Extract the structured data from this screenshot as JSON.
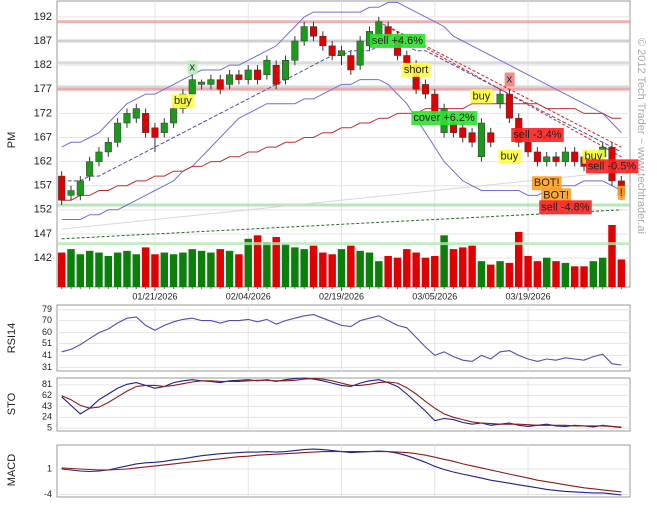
{
  "chart_data": [
    {
      "type": "candlestick",
      "ylabel": "PM",
      "categories": [
        null,
        null,
        null,
        null,
        null,
        null,
        null,
        null,
        null,
        null,
        "01/21/2026",
        null,
        null,
        null,
        null,
        null,
        null,
        null,
        null,
        null,
        "02/04/2026",
        null,
        null,
        null,
        null,
        null,
        null,
        null,
        null,
        null,
        "02/19/2026",
        null,
        null,
        null,
        null,
        null,
        null,
        null,
        null,
        null,
        "03/05/2026",
        null,
        null,
        null,
        null,
        null,
        null,
        null,
        null,
        null,
        "03/19/2026",
        null,
        null,
        null,
        null,
        null,
        null,
        null,
        null,
        null,
        null
      ],
      "ylim": [
        136,
        195.3
      ],
      "yticks": [
        142,
        147,
        152,
        157,
        162,
        167,
        172,
        177,
        182,
        187,
        192
      ],
      "grid": true,
      "up_color": "#1c9a1c",
      "down_color": "#e00000",
      "open": [
        159,
        155,
        155,
        159,
        162,
        164,
        166,
        170,
        171,
        172,
        169,
        168,
        170,
        173,
        176,
        178,
        178,
        179,
        178,
        180,
        179,
        181,
        180,
        182,
        179,
        183,
        187,
        190,
        188,
        186,
        184,
        184,
        182,
        186,
        188,
        190,
        188,
        184,
        182,
        178,
        176,
        168,
        170,
        169,
        168,
        163,
        168,
        174,
        176,
        171,
        166,
        164,
        162,
        163,
        162,
        164,
        163,
        161,
        163,
        165,
        158
      ],
      "high": [
        160,
        157,
        159,
        163,
        165,
        167,
        171,
        173,
        174,
        173,
        170,
        171,
        174,
        177,
        180,
        179,
        180,
        180,
        181,
        181,
        182,
        182,
        184,
        183,
        184,
        188,
        191,
        191,
        189,
        187,
        186,
        185,
        188,
        190,
        192,
        191,
        189,
        185,
        183,
        179,
        177,
        174,
        171,
        170,
        169,
        171,
        169,
        177,
        177,
        172,
        167,
        165,
        164,
        164,
        165,
        165,
        164,
        164,
        166,
        166,
        159
      ],
      "low": [
        153,
        154,
        154,
        158,
        161,
        163,
        165,
        169,
        170,
        167,
        164,
        167,
        169,
        172,
        175,
        177,
        177,
        176,
        177,
        178,
        178,
        178,
        179,
        177,
        178,
        182,
        186,
        187,
        185,
        183,
        182,
        180,
        181,
        185,
        187,
        187,
        183,
        180,
        176,
        175,
        171,
        167,
        167,
        166,
        165,
        162,
        165,
        173,
        170,
        165,
        163,
        161,
        161,
        161,
        161,
        161,
        160,
        160,
        162,
        157,
        154
      ],
      "close": [
        154,
        156,
        158,
        162,
        164,
        166,
        170,
        172,
        173,
        168,
        167,
        170,
        173,
        176,
        179,
        178.5,
        179,
        177,
        180,
        179,
        181,
        179,
        183,
        178,
        183,
        187,
        190,
        188,
        186,
        184,
        185,
        181,
        187,
        189,
        191,
        188,
        184,
        181,
        177,
        176,
        172,
        173,
        168,
        167,
        166,
        170,
        166,
        176,
        171,
        166,
        164,
        162,
        163,
        162,
        164,
        162,
        161,
        163,
        165,
        158,
        155
      ],
      "volume": [
        40,
        44,
        38,
        42,
        40,
        36,
        40,
        42,
        38,
        46,
        38,
        40,
        38,
        40,
        44,
        42,
        40,
        44,
        42,
        38,
        56,
        60,
        52,
        58,
        50,
        46,
        44,
        48,
        40,
        38,
        44,
        48,
        42,
        40,
        30,
        36,
        34,
        44,
        40,
        34,
        36,
        60,
        44,
        46,
        48,
        30,
        26,
        30,
        28,
        64,
        36,
        30,
        34,
        30,
        28,
        24,
        24,
        30,
        34,
        72,
        32
      ],
      "overlays": [
        {
          "color": "#7070d8",
          "values": [
            165,
            166,
            166,
            167,
            168,
            170,
            172,
            174,
            175,
            176,
            176,
            177,
            178,
            179,
            180,
            181,
            181,
            181,
            182,
            182,
            183,
            184,
            185,
            186,
            188,
            190,
            192,
            193,
            193,
            193,
            193,
            193,
            193,
            194,
            194,
            195,
            195,
            194,
            193,
            192,
            191,
            190,
            188,
            187,
            186,
            185,
            184,
            183,
            182,
            181,
            180,
            179,
            178,
            177,
            176,
            175,
            174,
            173,
            172,
            170,
            168
          ]
        },
        {
          "color": "#7070d8",
          "values": [
            150,
            150,
            150,
            151,
            151,
            152,
            152,
            153,
            154,
            155,
            156,
            157,
            158,
            160,
            161,
            163,
            165,
            167,
            169,
            171,
            172,
            173,
            174,
            174,
            174,
            174,
            175,
            175,
            176,
            177,
            178,
            178,
            179,
            179,
            179,
            178,
            176,
            174,
            171,
            168,
            165,
            162,
            160,
            158,
            157,
            156,
            156,
            156,
            156,
            156,
            155,
            155,
            156,
            157,
            157,
            157,
            158,
            158,
            158,
            157,
            156
          ]
        },
        {
          "color": "#5050a0",
          "dash": true,
          "values": [
            158,
            158,
            158,
            159,
            159,
            160,
            161,
            162,
            163,
            164,
            165,
            166,
            167,
            168,
            169,
            170,
            171,
            172,
            173,
            174,
            175,
            176,
            177,
            178,
            179,
            180,
            181,
            182,
            183,
            184,
            184,
            185,
            185,
            185,
            186,
            186,
            186,
            186,
            185,
            185,
            184,
            183,
            182,
            181,
            180,
            179,
            178,
            177,
            176,
            175,
            174,
            173,
            172,
            171,
            170,
            169,
            168,
            167,
            166,
            165,
            164
          ]
        },
        {
          "color": "#c03030",
          "values": [
            154,
            154,
            155,
            155,
            156,
            156,
            157,
            157,
            158,
            158,
            159,
            159,
            160,
            160,
            161,
            161,
            162,
            162,
            163,
            163,
            164,
            164,
            165,
            165,
            166,
            166,
            167,
            167,
            168,
            168,
            169,
            169,
            170,
            170,
            171,
            171,
            172,
            172,
            172,
            173,
            173,
            173,
            173,
            173,
            174,
            174,
            174,
            174,
            174,
            174,
            174,
            174,
            173,
            173,
            173,
            173,
            172,
            172,
            172,
            171,
            171
          ]
        }
      ],
      "levels": [
        {
          "value": 187,
          "color": "#c8c8c8"
        },
        {
          "value": 182.5,
          "color": "#d4d4d4"
        },
        {
          "value": 177.5,
          "color": "#d0d0d0"
        },
        {
          "value": 191,
          "color": "#e8a0a0"
        },
        {
          "value": 177,
          "color": "#e8a0a0"
        },
        {
          "value": 153,
          "color": "#a8e0a8"
        },
        {
          "value": 145,
          "color": "#b8e8b8"
        }
      ],
      "trendlines": [
        {
          "from": [
            34,
            191
          ],
          "to": [
            60,
            163
          ],
          "color": "#e02020",
          "dash": true
        },
        {
          "from": [
            35,
            190
          ],
          "to": [
            60,
            165
          ],
          "color": "#e02020",
          "dash": true
        },
        {
          "from": [
            0,
            146
          ],
          "to": [
            60,
            152
          ],
          "color": "#207020",
          "dash": true
        },
        {
          "from": [
            0,
            148
          ],
          "to": [
            60,
            160
          ],
          "color": "#d8d8d8",
          "dash": false
        }
      ],
      "annotations": [
        {
          "text": "x",
          "index": 14,
          "price": 181.5,
          "color": "#b8f0b8"
        },
        {
          "text": "buy",
          "index": 13,
          "price": 174.5,
          "color": "#ffff40"
        },
        {
          "text": "sell +4.6%",
          "index": 36,
          "price": 187,
          "color": "#30e030"
        },
        {
          "text": "short",
          "index": 38,
          "price": 181,
          "color": "#ffff40"
        },
        {
          "text": "x",
          "index": 48,
          "price": 179,
          "color": "#f08080"
        },
        {
          "text": "buy",
          "index": 45,
          "price": 175.5,
          "color": "#ffff40"
        },
        {
          "text": "cover +6.2%",
          "index": 41,
          "price": 171,
          "color": "#30e030"
        },
        {
          "text": "sell -3.4%",
          "index": 51,
          "price": 167.5,
          "color": "#ff2020"
        },
        {
          "text": "buy",
          "index": 48,
          "price": 163,
          "color": "#ffff40"
        },
        {
          "text": "BOT!",
          "index": 52,
          "price": 157.5,
          "color": "#ffa020"
        },
        {
          "text": "BOT!",
          "index": 53,
          "price": 155,
          "color": "#ffa020"
        },
        {
          "text": "buy",
          "index": 57,
          "price": 163,
          "color": "#ffff40"
        },
        {
          "text": "sell -0.5%",
          "index": 59,
          "price": 161,
          "color": "#ff2020"
        },
        {
          "text": "sell -4.8%",
          "index": 54,
          "price": 152.5,
          "color": "#ff2020"
        },
        {
          "text": "!",
          "index": 60,
          "price": 155.5,
          "color": "#ffa020"
        }
      ],
      "copyright": "© 2012 Tech Trader ~ www.techtrader.ai"
    },
    {
      "type": "line",
      "ylabel": "RSI14",
      "ylim": [
        28,
        83
      ],
      "yticks": [
        31,
        41,
        51,
        60,
        70,
        79
      ],
      "grid": true,
      "series": [
        {
          "color": "#5050b0",
          "values": [
            44,
            46,
            50,
            55,
            60,
            63,
            68,
            72,
            73,
            66,
            62,
            66,
            69,
            71,
            72,
            70,
            70,
            68,
            70,
            70,
            71,
            69,
            71,
            67,
            70,
            72,
            74,
            75,
            72,
            69,
            66,
            65,
            70,
            72,
            74,
            70,
            66,
            64,
            56,
            48,
            41,
            44,
            40,
            37,
            36,
            41,
            38,
            44,
            45,
            41,
            38,
            36,
            38,
            37,
            39,
            38,
            37,
            40,
            42,
            34,
            33
          ]
        }
      ]
    },
    {
      "type": "line",
      "ylabel": "STO",
      "ylim": [
        0,
        93
      ],
      "yticks": [
        5,
        24,
        43,
        62,
        81
      ],
      "grid": true,
      "series": [
        {
          "color": "#20208c",
          "values": [
            60,
            45,
            30,
            40,
            55,
            65,
            75,
            82,
            85,
            80,
            75,
            78,
            85,
            88,
            90,
            88,
            87,
            85,
            88,
            89,
            90,
            88,
            90,
            87,
            90,
            92,
            93,
            91,
            88,
            84,
            80,
            78,
            84,
            88,
            90,
            85,
            78,
            65,
            50,
            35,
            18,
            22,
            20,
            15,
            12,
            14,
            10,
            12,
            14,
            10,
            8,
            10,
            12,
            9,
            8,
            10,
            9,
            7,
            10,
            8,
            6
          ]
        },
        {
          "color": "#8c1c1c",
          "values": [
            62,
            55,
            45,
            40,
            42,
            50,
            60,
            70,
            78,
            80,
            80,
            78,
            80,
            83,
            86,
            88,
            88,
            87,
            87,
            87,
            88,
            89,
            89,
            88,
            88,
            89,
            91,
            92,
            91,
            88,
            84,
            80,
            80,
            82,
            85,
            86,
            84,
            76,
            65,
            52,
            40,
            30,
            24,
            20,
            16,
            14,
            13,
            12,
            12,
            12,
            11,
            10,
            10,
            10,
            10,
            9,
            9,
            9,
            9,
            8,
            7
          ]
        }
      ]
    },
    {
      "type": "line",
      "ylabel": "MACD",
      "ylim": [
        -4.5,
        5.7
      ],
      "yticks": [
        -4,
        1
      ],
      "grid": true,
      "series": [
        {
          "color": "#20208c",
          "values": [
            1.0,
            0.8,
            0.6,
            0.5,
            0.6,
            0.8,
            1.2,
            1.6,
            2.0,
            2.2,
            2.3,
            2.5,
            2.8,
            3.0,
            3.3,
            3.6,
            3.8,
            4.0,
            4.1,
            4.2,
            4.3,
            4.3,
            4.4,
            4.3,
            4.4,
            4.6,
            4.8,
            4.9,
            4.8,
            4.6,
            4.4,
            4.2,
            4.3,
            4.4,
            4.5,
            4.4,
            4.1,
            3.6,
            3.0,
            2.3,
            1.5,
            0.9,
            0.4,
            0.0,
            -0.4,
            -0.8,
            -1.2,
            -1.5,
            -1.8,
            -2.1,
            -2.4,
            -2.7,
            -3.0,
            -3.2,
            -3.4,
            -3.5,
            -3.6,
            -3.7,
            -3.7,
            -3.9,
            -4.1
          ]
        },
        {
          "color": "#8c1c1c",
          "values": [
            1.2,
            1.1,
            1.0,
            0.9,
            0.8,
            0.8,
            0.9,
            1.0,
            1.2,
            1.4,
            1.6,
            1.8,
            2.0,
            2.2,
            2.4,
            2.6,
            2.8,
            3.0,
            3.2,
            3.4,
            3.5,
            3.7,
            3.8,
            3.9,
            4.0,
            4.1,
            4.2,
            4.3,
            4.4,
            4.4,
            4.4,
            4.4,
            4.4,
            4.4,
            4.4,
            4.4,
            4.3,
            4.2,
            4.0,
            3.7,
            3.3,
            2.9,
            2.5,
            2.0,
            1.6,
            1.2,
            0.8,
            0.4,
            0.0,
            -0.4,
            -0.8,
            -1.2,
            -1.5,
            -1.8,
            -2.1,
            -2.4,
            -2.7,
            -2.9,
            -3.1,
            -3.3,
            -3.5
          ]
        }
      ]
    }
  ]
}
